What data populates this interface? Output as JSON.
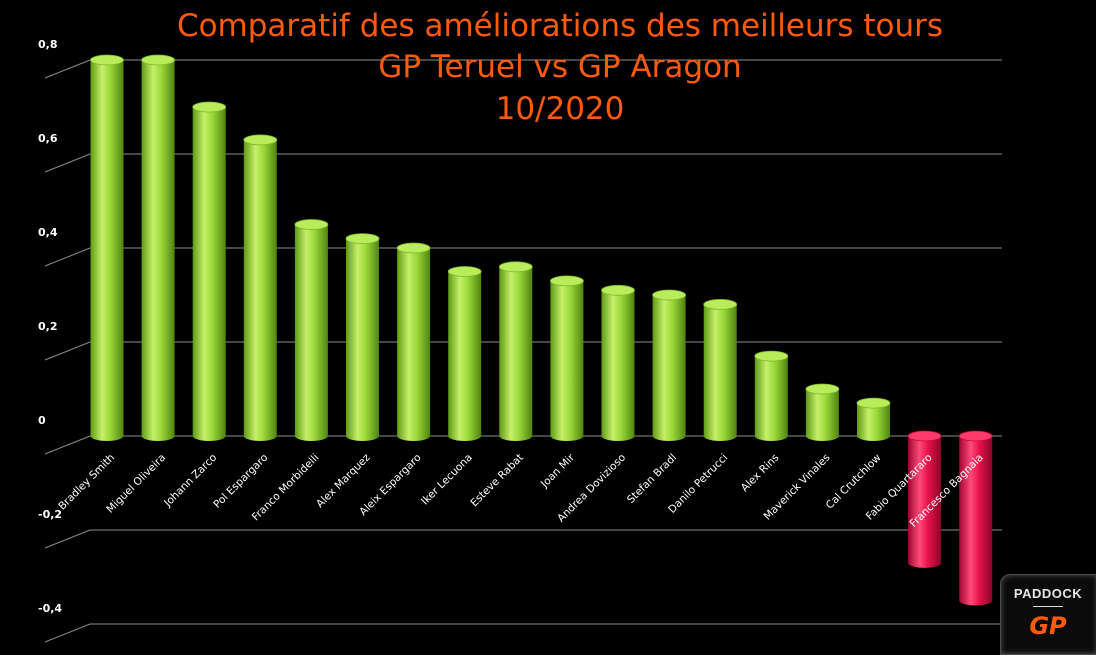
{
  "title_lines": [
    "Comparatif des améliorations des meilleurs tours",
    "GP Teruel vs GP Aragon",
    "10/2020"
  ],
  "logo": {
    "word": "PADDOCK",
    "mark": "GP"
  },
  "colors": {
    "positive": "#9ad83a",
    "negative": "#e8124a",
    "title": "#ff5a0a",
    "grid": "#8c8c8c",
    "background": "#000000"
  },
  "chart_data": {
    "type": "bar",
    "title": "Comparatif des améliorations des meilleurs tours GP Teruel vs GP Aragon 10/2020",
    "categories": [
      "Bradley Smith",
      "Miguel Oliveira",
      "Johann Zarco",
      "Pol Espargaro",
      "Franco Morbidelli",
      "Alex Marquez",
      "Aleix Espargaro",
      "Iker Lecuona",
      "Esteve Rabat",
      "Joan Mir",
      "Andrea Dovizioso",
      "Stefan Bradl",
      "Danilo Petrucci",
      "Alex Rins",
      "Maverick Vinales",
      "Cal Crutchlow",
      "Fabio Quartararo",
      "Francesco Bagnaia"
    ],
    "values": [
      0.8,
      0.8,
      0.7,
      0.63,
      0.45,
      0.42,
      0.4,
      0.35,
      0.36,
      0.33,
      0.31,
      0.3,
      0.28,
      0.17,
      0.1,
      0.07,
      -0.27,
      -0.35
    ],
    "yticks": [
      "0,8",
      "0,6",
      "0,4",
      "0,2",
      "0",
      "-0,2",
      "-0,4"
    ],
    "ytick_values": [
      0.8,
      0.6,
      0.4,
      0.2,
      0,
      -0.2,
      -0.4
    ],
    "ylim": [
      -0.4,
      0.8
    ],
    "grid": true,
    "legend": "none",
    "xlabel": "",
    "ylabel": ""
  }
}
